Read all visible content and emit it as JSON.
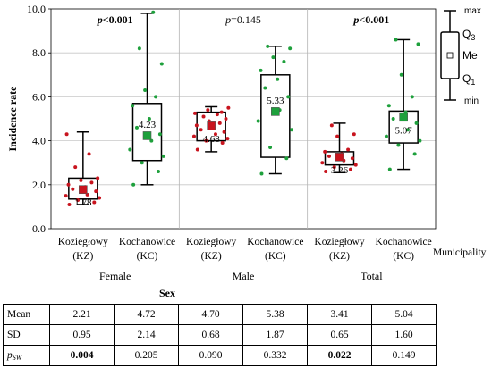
{
  "chart_data": {
    "type": "box",
    "y_axis": {
      "label": "Incidence rate",
      "ylim": [
        0,
        10
      ],
      "ticks": [
        "0.0",
        "2.0",
        "4.0",
        "6.0",
        "8.0",
        "10.0"
      ]
    },
    "x_axis": {
      "label": "Sex",
      "municipality_label": "Municipality",
      "groups": [
        {
          "name": "Female",
          "pvalue": {
            "prefix": "p",
            "rest": "<0.001",
            "bold": true
          }
        },
        {
          "name": "Male",
          "pvalue": {
            "prefix": "p",
            "rest": "=0.145",
            "bold": false
          }
        },
        {
          "name": "Total",
          "pvalue": {
            "prefix": "p",
            "rest": "<0.001",
            "bold": true
          }
        }
      ]
    },
    "boxes": [
      {
        "group": "Female",
        "line1": "Koziegłowy",
        "line2": "(KZ)",
        "min": 1.1,
        "q1": 1.35,
        "median": 1.78,
        "q3": 2.3,
        "max": 4.4,
        "median_label": "1.78",
        "marker_color": "#c8141e",
        "points": [
          1.1,
          1.2,
          1.3,
          1.4,
          1.5,
          1.55,
          1.7,
          1.8,
          1.9,
          2.0,
          2.1,
          2.2,
          2.3,
          2.8,
          3.4,
          4.3
        ]
      },
      {
        "group": "Female",
        "line1": "Kochanowice",
        "line2": "(KC)",
        "min": 2.0,
        "q1": 3.1,
        "median": 4.23,
        "q3": 5.7,
        "max": 9.8,
        "median_label": "4.23",
        "marker_color": "#1ea03c",
        "points": [
          2.0,
          2.6,
          3.0,
          3.3,
          3.6,
          4.0,
          4.3,
          4.6,
          5.0,
          5.6,
          6.0,
          6.3,
          7.5,
          8.2,
          9.85
        ]
      },
      {
        "group": "Male",
        "line1": "Koziegłowy",
        "line2": "(KZ)",
        "min": 3.5,
        "q1": 4.0,
        "median": 4.68,
        "q3": 5.3,
        "max": 5.55,
        "median_label": "4.68",
        "marker_color": "#c8141e",
        "points": [
          3.6,
          3.9,
          4.0,
          4.1,
          4.2,
          4.3,
          4.4,
          4.5,
          4.6,
          4.7,
          4.8,
          4.9,
          5.0,
          5.1,
          5.2,
          5.25,
          5.3,
          5.4,
          5.5
        ]
      },
      {
        "group": "Male",
        "line1": "Kochanowice",
        "line2": "(KC)",
        "min": 2.5,
        "q1": 3.25,
        "median": 5.33,
        "q3": 7.0,
        "max": 8.3,
        "median_label": "5.33",
        "marker_color": "#1ea03c",
        "points": [
          2.5,
          3.2,
          3.7,
          4.5,
          4.9,
          5.4,
          6.0,
          6.4,
          6.8,
          7.2,
          7.6,
          7.8,
          8.2,
          8.3
        ]
      },
      {
        "group": "Total",
        "line1": "Koziegłowy",
        "line2": "(KZ)",
        "min": 2.55,
        "q1": 2.9,
        "median": 3.26,
        "q3": 3.5,
        "max": 4.8,
        "median_label": "3.26",
        "marker_color": "#c8141e",
        "points": [
          2.6,
          2.7,
          2.8,
          2.9,
          3.0,
          3.1,
          3.2,
          3.3,
          3.4,
          3.5,
          3.6,
          4.2,
          4.3,
          4.7
        ]
      },
      {
        "group": "Total",
        "line1": "Kochanowice",
        "line2": "(KC)",
        "min": 2.7,
        "q1": 3.9,
        "median": 5.07,
        "q3": 5.35,
        "max": 8.6,
        "median_label": "5.07",
        "marker_color": "#1ea03c",
        "points": [
          2.7,
          3.4,
          3.8,
          4.0,
          4.2,
          4.5,
          4.8,
          5.0,
          5.3,
          5.6,
          6.0,
          7.0,
          8.4,
          8.6
        ]
      }
    ],
    "legend": {
      "position": "right",
      "labels": {
        "max": "max",
        "q3_main": "Q",
        "q3_sub": "3",
        "me": "Me",
        "q1_main": "Q",
        "q1_sub": "1",
        "min": "min"
      }
    }
  },
  "stats_table": {
    "rows": [
      {
        "label": "Mean",
        "values": [
          "2.21",
          "4.72",
          "4.70",
          "5.38",
          "3.41",
          "5.04"
        ],
        "bold": [
          false,
          false,
          false,
          false,
          false,
          false
        ]
      },
      {
        "label": "SD",
        "values": [
          "0.95",
          "2.14",
          "0.68",
          "1.87",
          "0.65",
          "1.60"
        ],
        "bold": [
          false,
          false,
          false,
          false,
          false,
          false
        ]
      },
      {
        "label_main": "p",
        "label_sub": "SW",
        "values": [
          "0.004",
          "0.205",
          "0.090",
          "0.332",
          "0.022",
          "0.149"
        ],
        "bold": [
          true,
          false,
          false,
          false,
          true,
          false
        ]
      }
    ]
  }
}
